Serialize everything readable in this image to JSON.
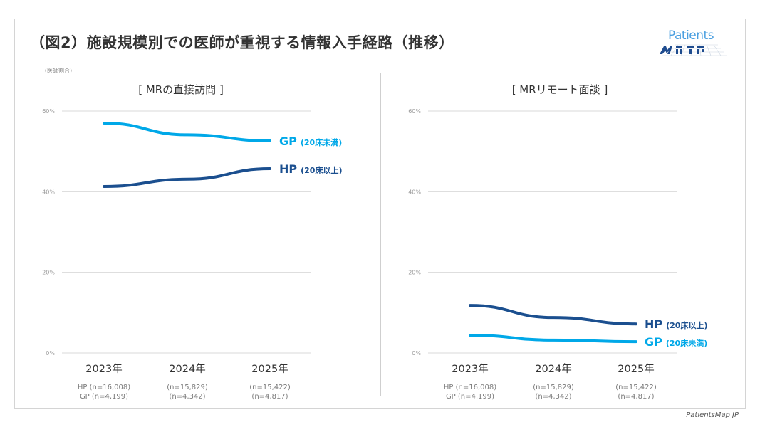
{
  "header": {
    "title": "（図2）施設規模別での医師が重視する情報入手経路（推移）",
    "logo_text": "Patients",
    "logo_icon": "patients-map-logo-icon"
  },
  "unit_note": "（医師割合）",
  "footer": "PatientsMap JP",
  "colors": {
    "HP": "#1b4f8f",
    "GP": "#00a8e8",
    "grid": "#d9d9d9"
  },
  "sample_sizes": {
    "2023年": {
      "HP": "HP (n=16,008)",
      "GP": "GP  (n=4,199)"
    },
    "2024年": {
      "HP": "(n=15,829)",
      "GP": "(n=4,342)"
    },
    "2025年": {
      "HP": "(n=15,422)",
      "GP": "(n=4,817)"
    }
  },
  "chart_data": [
    {
      "type": "line",
      "title": "[ MRの直接訪問 ]",
      "categories": [
        "2023年",
        "2024年",
        "2025年"
      ],
      "ylabel": "（医師割合）",
      "ylim": [
        0,
        60
      ],
      "yticks": [
        "0%",
        "20%",
        "40%",
        "60%"
      ],
      "grid": true,
      "sample_labels": [
        [
          "HP (n=16,008)",
          "GP  (n=4,199)"
        ],
        [
          "(n=15,829)",
          "(n=4,342)"
        ],
        [
          "(n=15,422)",
          "(n=4,817)"
        ]
      ],
      "series": [
        {
          "key": "GP",
          "name": "GP",
          "sub": "(20床未満)",
          "values": [
            57.0,
            54.1,
            52.6
          ]
        },
        {
          "key": "HP",
          "name": "HP",
          "sub": "(20床以上)",
          "values": [
            41.3,
            43.1,
            45.7
          ]
        }
      ]
    },
    {
      "type": "line",
      "title": "[ MRリモート面談 ]",
      "categories": [
        "2023年",
        "2024年",
        "2025年"
      ],
      "ylabel": "",
      "ylim": [
        0,
        60
      ],
      "yticks": [
        "0%",
        "20%",
        "40%",
        "60%"
      ],
      "grid": true,
      "sample_labels": [
        [
          "HP (n=16,008)",
          "GP  (n=4,199)"
        ],
        [
          "(n=15,829)",
          "(n=4,342)"
        ],
        [
          "(n=15,422)",
          "(n=4,817)"
        ]
      ],
      "series": [
        {
          "key": "HP",
          "name": "HP",
          "sub": "(20床以上)",
          "values": [
            11.8,
            8.8,
            7.2
          ]
        },
        {
          "key": "GP",
          "name": "GP",
          "sub": "(20床未満)",
          "values": [
            4.4,
            3.2,
            2.8
          ]
        }
      ]
    }
  ]
}
